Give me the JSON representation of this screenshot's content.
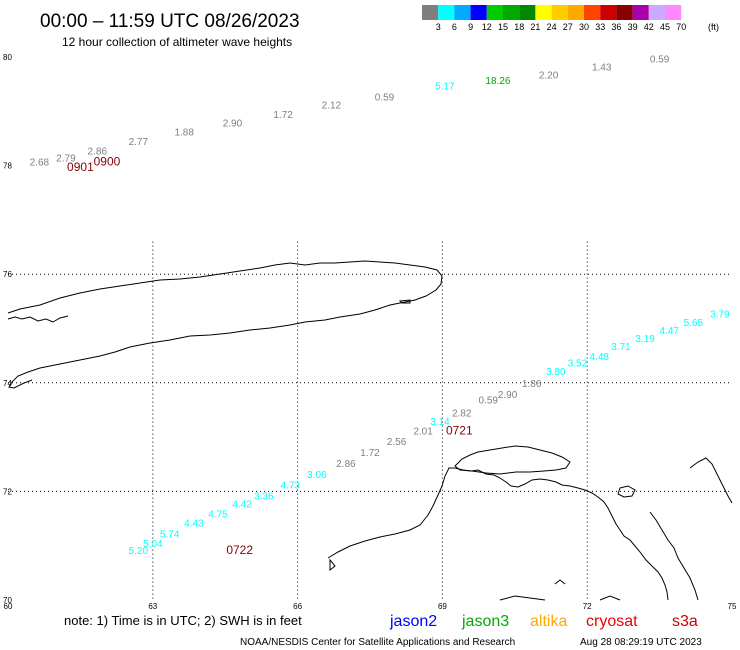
{
  "header": {
    "title": "00:00 – 11:59 UTC 08/26/2023",
    "subtitle": "12 hour collection of altimeter wave heights"
  },
  "legend": {
    "unit": "(ft)",
    "bins": [
      {
        "label": "3",
        "color": "#7f7f7f"
      },
      {
        "label": "6",
        "color": "#00ffff"
      },
      {
        "label": "9",
        "color": "#00aaff"
      },
      {
        "label": "12",
        "color": "#0000ff"
      },
      {
        "label": "15",
        "color": "#00cc00"
      },
      {
        "label": "18",
        "color": "#00aa00"
      },
      {
        "label": "21",
        "color": "#008800"
      },
      {
        "label": "24",
        "color": "#ffff00"
      },
      {
        "label": "27",
        "color": "#ffcc00"
      },
      {
        "label": "30",
        "color": "#ffaa00"
      },
      {
        "label": "33",
        "color": "#ff4400"
      },
      {
        "label": "36",
        "color": "#cc0000"
      },
      {
        "label": "39",
        "color": "#880000"
      },
      {
        "label": "42",
        "color": "#aa00aa"
      },
      {
        "label": "45",
        "color": "#ccaaff"
      },
      {
        "label": "70",
        "color": "#ff88ff"
      }
    ]
  },
  "map": {
    "lat_labels": [
      "80",
      "78",
      "76",
      "74",
      "72",
      "70"
    ],
    "lon_labels": [
      "60",
      "63",
      "66",
      "69",
      "72",
      "75"
    ],
    "observations": [
      {
        "v": "0.59",
        "lon": 73.5,
        "lat": 79.9,
        "c": "#7f7f7f"
      },
      {
        "v": "1.43",
        "lon": 72.3,
        "lat": 79.75,
        "c": "#7f7f7f"
      },
      {
        "v": "2.20",
        "lon": 71.2,
        "lat": 79.6,
        "c": "#7f7f7f"
      },
      {
        "v": "18.26",
        "lon": 70.15,
        "lat": 79.5,
        "c": "#00aa00"
      },
      {
        "v": "5.17",
        "lon": 69.05,
        "lat": 79.4,
        "c": "#00ffff"
      },
      {
        "v": "0.59",
        "lon": 67.8,
        "lat": 79.2,
        "c": "#7f7f7f"
      },
      {
        "v": "2.12",
        "lon": 66.7,
        "lat": 79.05,
        "c": "#7f7f7f"
      },
      {
        "v": "1.72",
        "lon": 65.7,
        "lat": 78.88,
        "c": "#7f7f7f"
      },
      {
        "v": "2.90",
        "lon": 64.65,
        "lat": 78.72,
        "c": "#7f7f7f"
      },
      {
        "v": "1.88",
        "lon": 63.65,
        "lat": 78.55,
        "c": "#7f7f7f"
      },
      {
        "v": "2.77",
        "lon": 62.7,
        "lat": 78.38,
        "c": "#7f7f7f"
      },
      {
        "v": "2.86",
        "lon": 61.85,
        "lat": 78.2,
        "c": "#7f7f7f"
      },
      {
        "v": "2.79",
        "lon": 61.2,
        "lat": 78.08,
        "c": "#7f7f7f"
      },
      {
        "v": "2.68",
        "lon": 60.65,
        "lat": 78.0,
        "c": "#7f7f7f"
      },
      {
        "v": "3.79",
        "lon": 74.75,
        "lat": 75.2,
        "c": "#00ffff"
      },
      {
        "v": "5.65",
        "lon": 74.2,
        "lat": 75.05,
        "c": "#00ffff"
      },
      {
        "v": "4.47",
        "lon": 73.7,
        "lat": 74.9,
        "c": "#00ffff"
      },
      {
        "v": "3.19",
        "lon": 73.2,
        "lat": 74.75,
        "c": "#00ffff"
      },
      {
        "v": "3.71",
        "lon": 72.7,
        "lat": 74.6,
        "c": "#00ffff"
      },
      {
        "v": "4.48",
        "lon": 72.25,
        "lat": 74.42,
        "c": "#00ffff"
      },
      {
        "v": "3.52",
        "lon": 71.8,
        "lat": 74.3,
        "c": "#00ffff"
      },
      {
        "v": "3.80",
        "lon": 71.35,
        "lat": 74.14,
        "c": "#00ffff"
      },
      {
        "v": "1.86",
        "lon": 70.85,
        "lat": 73.92,
        "c": "#7f7f7f"
      },
      {
        "v": "2.90",
        "lon": 70.35,
        "lat": 73.72,
        "c": "#7f7f7f"
      },
      {
        "v": "0.59",
        "lon": 69.95,
        "lat": 73.62,
        "c": "#7f7f7f"
      },
      {
        "v": "2.82",
        "lon": 69.4,
        "lat": 73.38,
        "c": "#7f7f7f"
      },
      {
        "v": "3.14",
        "lon": 68.95,
        "lat": 73.22,
        "c": "#00ffff"
      },
      {
        "v": "2.01",
        "lon": 68.6,
        "lat": 73.05,
        "c": "#7f7f7f"
      },
      {
        "v": "2.56",
        "lon": 68.05,
        "lat": 72.85,
        "c": "#7f7f7f"
      },
      {
        "v": "1.72",
        "lon": 67.5,
        "lat": 72.65,
        "c": "#7f7f7f"
      },
      {
        "v": "2.86",
        "lon": 67.0,
        "lat": 72.45,
        "c": "#7f7f7f"
      },
      {
        "v": "3.06",
        "lon": 66.4,
        "lat": 72.25,
        "c": "#00ffff"
      },
      {
        "v": "4.73",
        "lon": 65.85,
        "lat": 72.05,
        "c": "#00ffff"
      },
      {
        "v": "3.36",
        "lon": 65.3,
        "lat": 71.85,
        "c": "#00ffff"
      },
      {
        "v": "4.42",
        "lon": 64.85,
        "lat": 71.7,
        "c": "#00ffff"
      },
      {
        "v": "4.75",
        "lon": 64.35,
        "lat": 71.52,
        "c": "#00ffff"
      },
      {
        "v": "4.43",
        "lon": 63.85,
        "lat": 71.35,
        "c": "#00ffff"
      },
      {
        "v": "5.74",
        "lon": 63.35,
        "lat": 71.15,
        "c": "#00ffff"
      },
      {
        "v": "5.04",
        "lon": 63.0,
        "lat": 70.98,
        "c": "#00ffff"
      },
      {
        "v": "5.20",
        "lon": 62.7,
        "lat": 70.85,
        "c": "#00ffff"
      }
    ],
    "time_labels": [
      {
        "t": "0900",
        "lon": 62.05,
        "lat": 78.0
      },
      {
        "t": "0901",
        "lon": 61.5,
        "lat": 77.9
      },
      {
        "t": "0721",
        "lon": 69.35,
        "lat": 73.05
      },
      {
        "t": "0722",
        "lon": 64.8,
        "lat": 70.85
      }
    ]
  },
  "footer": {
    "note": "note:  1) Time is in UTC;  2) SWH is in feet",
    "satellites": [
      {
        "name": "jason2",
        "color": "#0000ff"
      },
      {
        "name": "jason3",
        "color": "#00aa00"
      },
      {
        "name": "altika",
        "color": "#ffaa00"
      },
      {
        "name": "cryosat",
        "color": "#ee0000"
      },
      {
        "name": "s3a",
        "color": "#cc0000"
      }
    ],
    "credit": "NOAA/NESDIS Center for Satellite Applications and Research",
    "timestamp": "Aug 28 08:29:19 UTC 2023"
  }
}
